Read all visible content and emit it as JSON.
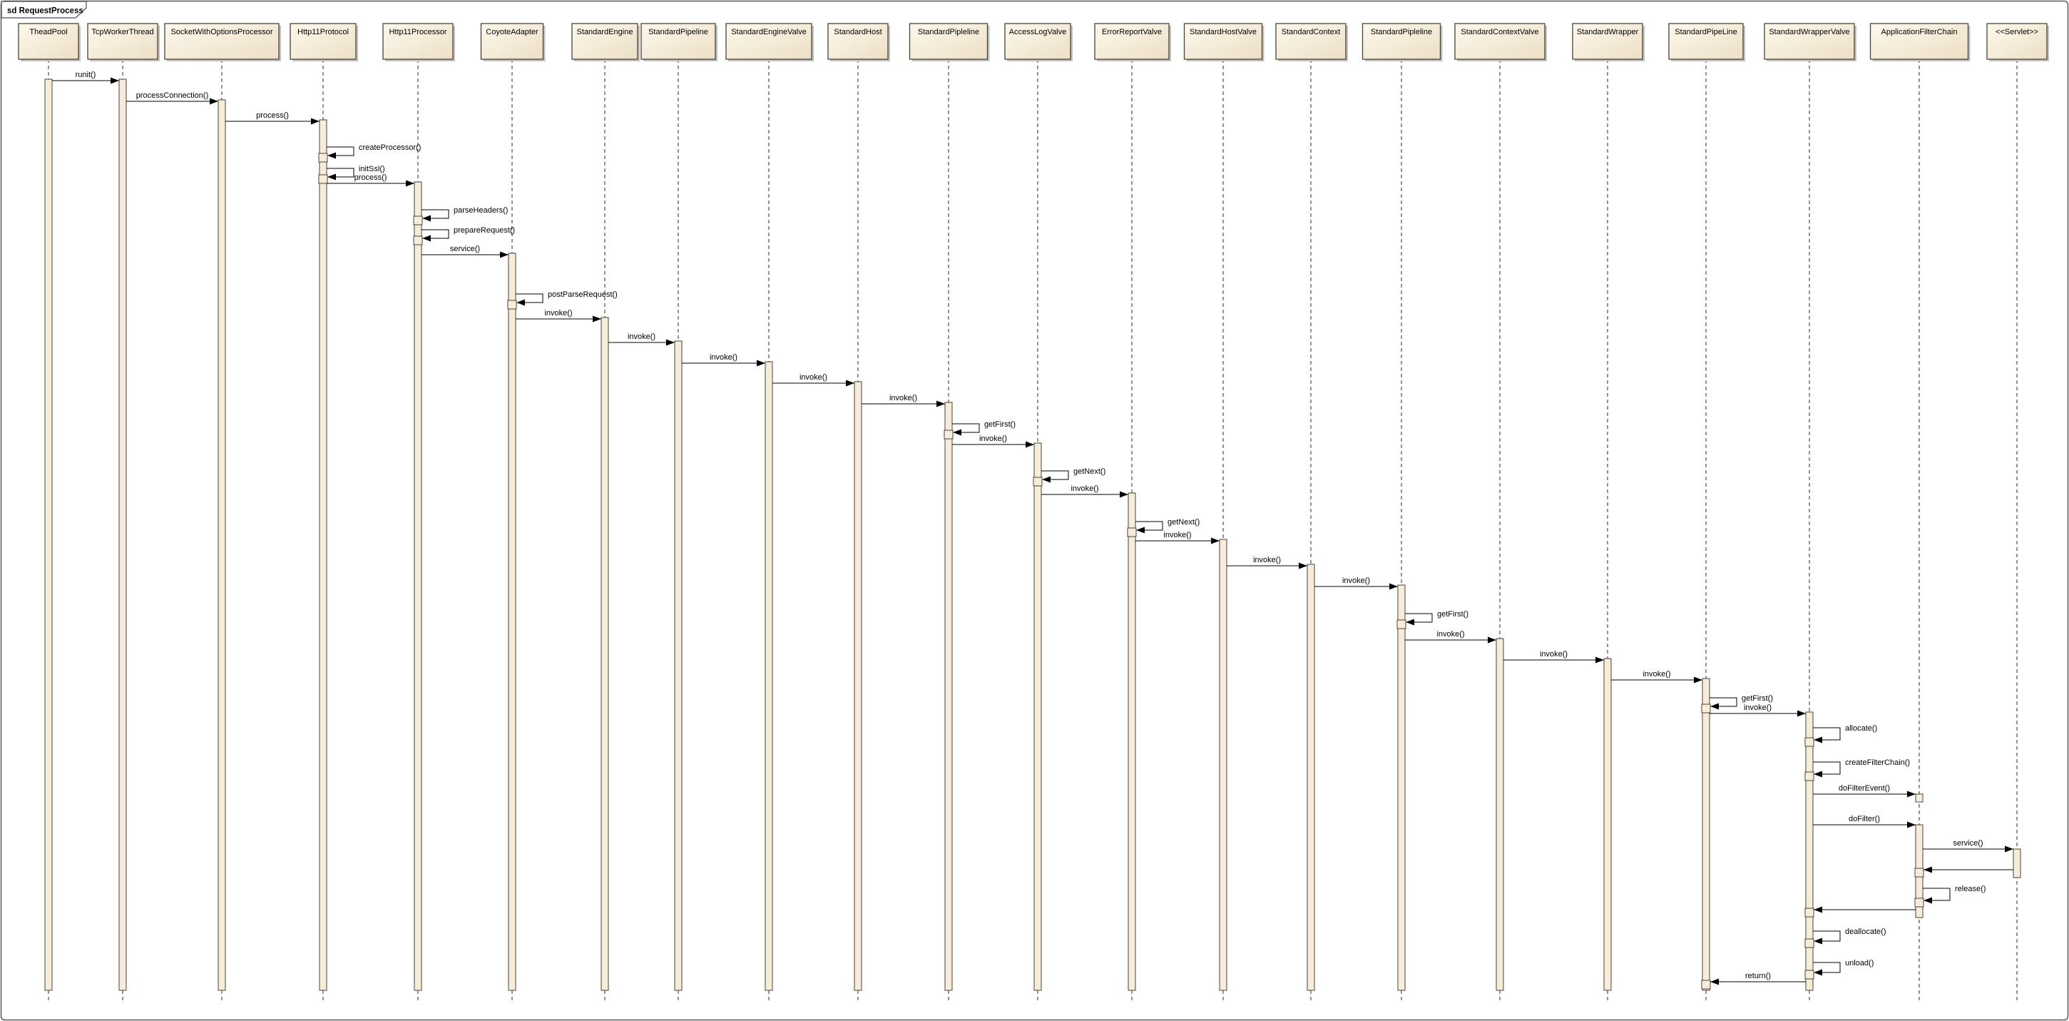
{
  "frame": {
    "title": "sd RequestProcess"
  },
  "colors": {
    "border": "#4a4337",
    "shadow": "#c2c2c2",
    "line": "#000000",
    "box_fill_light": "#fdf8ec",
    "box_fill_dark": "#eddfc6",
    "bar_fill": "#f6ecd9"
  },
  "chart_data": {
    "type": "sequence-diagram",
    "title": "sd RequestProcess",
    "participants": [
      "TheadPool",
      "TcpWorkerThread",
      "SocketWithOptionsProcessor",
      "Http11Protocol",
      "Http11Processor",
      "CoyoteAdapter",
      "StandardEngine",
      "StandardPipeline",
      "StandardEngineValve",
      "StandardHost",
      "StandardPipleline",
      "AccessLogValve",
      "ErrorReportValve",
      "StandardHostValve",
      "StandardContext",
      "StandardPipleline",
      "StandardContextValve",
      "StandardWrapper",
      "StandardPipeLine",
      "StandardWrapperValve",
      "ApplicationFilterChain",
      "<<Servlet>>"
    ],
    "messages": [
      {
        "label": "runit()",
        "from": 0,
        "to": 1,
        "kind": "call"
      },
      {
        "label": "processConnection()",
        "from": 1,
        "to": 2,
        "kind": "call"
      },
      {
        "label": "process()",
        "from": 2,
        "to": 3,
        "kind": "call"
      },
      {
        "label": "createProcessor()",
        "from": 3,
        "to": 3,
        "kind": "self"
      },
      {
        "label": "initSsl()",
        "from": 3,
        "to": 3,
        "kind": "self"
      },
      {
        "label": "process()",
        "from": 3,
        "to": 4,
        "kind": "call"
      },
      {
        "label": "parseHeaders()",
        "from": 4,
        "to": 4,
        "kind": "self"
      },
      {
        "label": "prepareRequest()",
        "from": 4,
        "to": 4,
        "kind": "self"
      },
      {
        "label": "service()",
        "from": 4,
        "to": 5,
        "kind": "call"
      },
      {
        "label": "postParseRequest()",
        "from": 5,
        "to": 5,
        "kind": "self"
      },
      {
        "label": "invoke()",
        "from": 5,
        "to": 6,
        "kind": "call"
      },
      {
        "label": "invoke()",
        "from": 6,
        "to": 7,
        "kind": "call"
      },
      {
        "label": "invoke()",
        "from": 7,
        "to": 8,
        "kind": "call"
      },
      {
        "label": "invoke()",
        "from": 8,
        "to": 9,
        "kind": "call"
      },
      {
        "label": "invoke()",
        "from": 9,
        "to": 10,
        "kind": "call"
      },
      {
        "label": "getFirst()",
        "from": 10,
        "to": 10,
        "kind": "self"
      },
      {
        "label": "invoke()",
        "from": 10,
        "to": 11,
        "kind": "call"
      },
      {
        "label": "getNext()",
        "from": 11,
        "to": 11,
        "kind": "self"
      },
      {
        "label": "invoke()",
        "from": 11,
        "to": 12,
        "kind": "call"
      },
      {
        "label": "getNext()",
        "from": 12,
        "to": 12,
        "kind": "self"
      },
      {
        "label": "invoke()",
        "from": 12,
        "to": 13,
        "kind": "call"
      },
      {
        "label": "invoke()",
        "from": 13,
        "to": 14,
        "kind": "call"
      },
      {
        "label": "invoke()",
        "from": 14,
        "to": 15,
        "kind": "call"
      },
      {
        "label": "getFirst()",
        "from": 15,
        "to": 15,
        "kind": "self"
      },
      {
        "label": "invoke()",
        "from": 15,
        "to": 16,
        "kind": "call"
      },
      {
        "label": "invoke()",
        "from": 16,
        "to": 17,
        "kind": "call"
      },
      {
        "label": "invoke()",
        "from": 17,
        "to": 18,
        "kind": "call"
      },
      {
        "label": "getFirst()",
        "from": 18,
        "to": 18,
        "kind": "self"
      },
      {
        "label": "invoke()",
        "from": 18,
        "to": 19,
        "kind": "call"
      },
      {
        "label": "allocate()",
        "from": 19,
        "to": 19,
        "kind": "self"
      },
      {
        "label": "createFilterChain()",
        "from": 19,
        "to": 19,
        "kind": "self"
      },
      {
        "label": "doFilterEvent()",
        "from": 19,
        "to": 20,
        "kind": "call",
        "target": "square"
      },
      {
        "label": "doFilter()",
        "from": 19,
        "to": 20,
        "kind": "call"
      },
      {
        "label": "service()",
        "from": 20,
        "to": 21,
        "kind": "call"
      },
      {
        "label": "",
        "from": 21,
        "to": 20,
        "kind": "return"
      },
      {
        "label": "release()",
        "from": 20,
        "to": 20,
        "kind": "self"
      },
      {
        "label": "",
        "from": 20,
        "to": 19,
        "kind": "return"
      },
      {
        "label": "deallocate()",
        "from": 19,
        "to": 19,
        "kind": "self"
      },
      {
        "label": "unload()",
        "from": 19,
        "to": 19,
        "kind": "self"
      },
      {
        "label": "return()",
        "from": 19,
        "to": 18,
        "kind": "return"
      }
    ]
  }
}
